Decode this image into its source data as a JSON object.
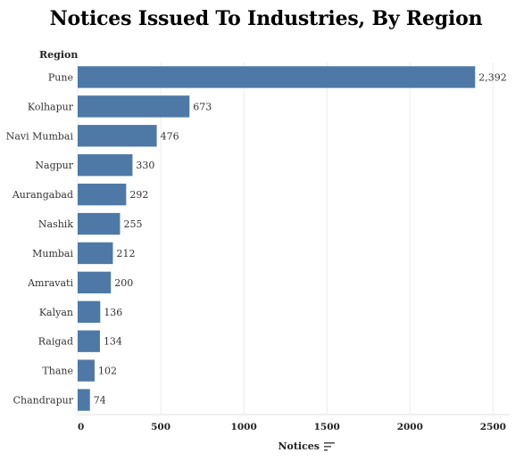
{
  "chart_data": {
    "type": "bar",
    "orientation": "horizontal",
    "title": "Notices Issued To Industries, By Region",
    "ylabel": "Region",
    "xlabel": "Notices",
    "categories": [
      "Pune",
      "Kolhapur",
      "Navi Mumbai",
      "Nagpur",
      "Aurangabad",
      "Nashik",
      "Mumbai",
      "Amravati",
      "Kalyan",
      "Raigad",
      "Thane",
      "Chandrapur"
    ],
    "values": [
      2392,
      673,
      476,
      330,
      292,
      255,
      212,
      200,
      136,
      134,
      102,
      74
    ],
    "value_labels": [
      "2,392",
      "673",
      "476",
      "330",
      "292",
      "255",
      "212",
      "200",
      "136",
      "134",
      "102",
      "74"
    ],
    "xlim": [
      0,
      2600
    ],
    "xticks": [
      0,
      500,
      1000,
      1500,
      2000,
      2500
    ],
    "grid": "vertical",
    "sorted": "descending",
    "bar_color": "#4e79a7"
  }
}
